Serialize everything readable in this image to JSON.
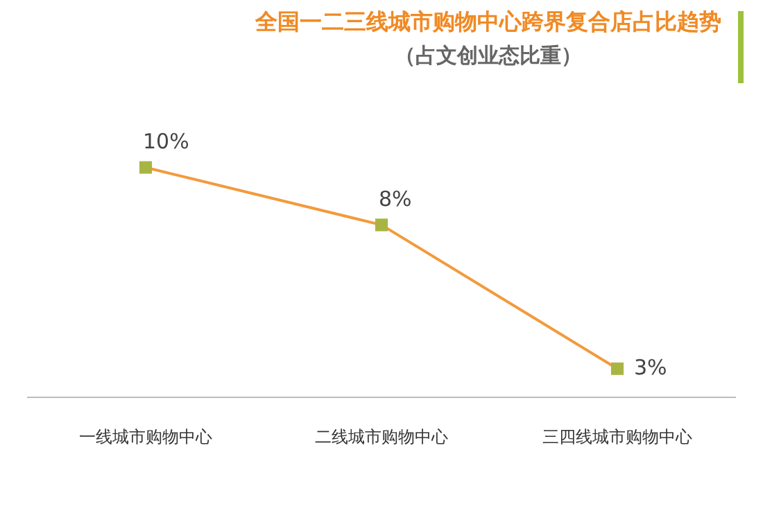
{
  "chart_data": {
    "type": "line",
    "title": "全国一二三线城市购物中心跨界复合店占比趋势",
    "subtitle": "（占文创业态比重）",
    "categories": [
      "一线城市购物中心",
      "二线城市购物中心",
      "三四线城市购物中心"
    ],
    "series": [
      {
        "color": "#f39a3c",
        "colors": [
          "#a9b542",
          "#a9b542",
          "#a9b542"
        ],
        "values": [
          10,
          8,
          3
        ],
        "value_labels": [
          "10%",
          "8%",
          "3%"
        ]
      }
    ],
    "marker": "square",
    "grid": false,
    "legend": false
  }
}
